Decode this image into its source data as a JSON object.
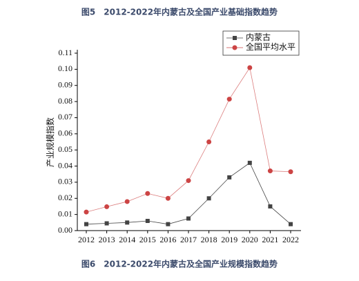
{
  "preceding_caption": "图5　2012-2022年内蒙古及全国产业基础指数趋势",
  "chart_data": {
    "type": "line",
    "title": "图6　2012-2022年内蒙古及全国产业规模指数趋势",
    "y_label": "产业规模指数",
    "categories": [
      "2012",
      "2013",
      "2014",
      "2015",
      "2016",
      "2017",
      "2018",
      "2019",
      "2020",
      "2021",
      "2022"
    ],
    "series": [
      {
        "name": "内蒙古",
        "color": "#444444",
        "marker": "square",
        "values": [
          0.004,
          0.0045,
          0.005,
          0.006,
          0.004,
          0.0075,
          0.02,
          0.033,
          0.042,
          0.015,
          0.004
        ]
      },
      {
        "name": "全国平均水平",
        "color": "#cc4444",
        "marker": "circle",
        "values": [
          0.0115,
          0.0148,
          0.018,
          0.023,
          0.02,
          0.031,
          0.055,
          0.0815,
          0.101,
          0.037,
          0.0365
        ]
      }
    ],
    "ylim": [
      0,
      0.11
    ],
    "yticks": [
      {
        "value": 0,
        "label": "0.00"
      },
      0.01,
      0.02,
      0.03,
      0.04,
      0.05,
      0.06,
      0.07,
      0.08,
      0.09,
      {
        "value": 0.1,
        "label": "0.10"
      },
      0.11
    ],
    "legend": "top-right"
  }
}
